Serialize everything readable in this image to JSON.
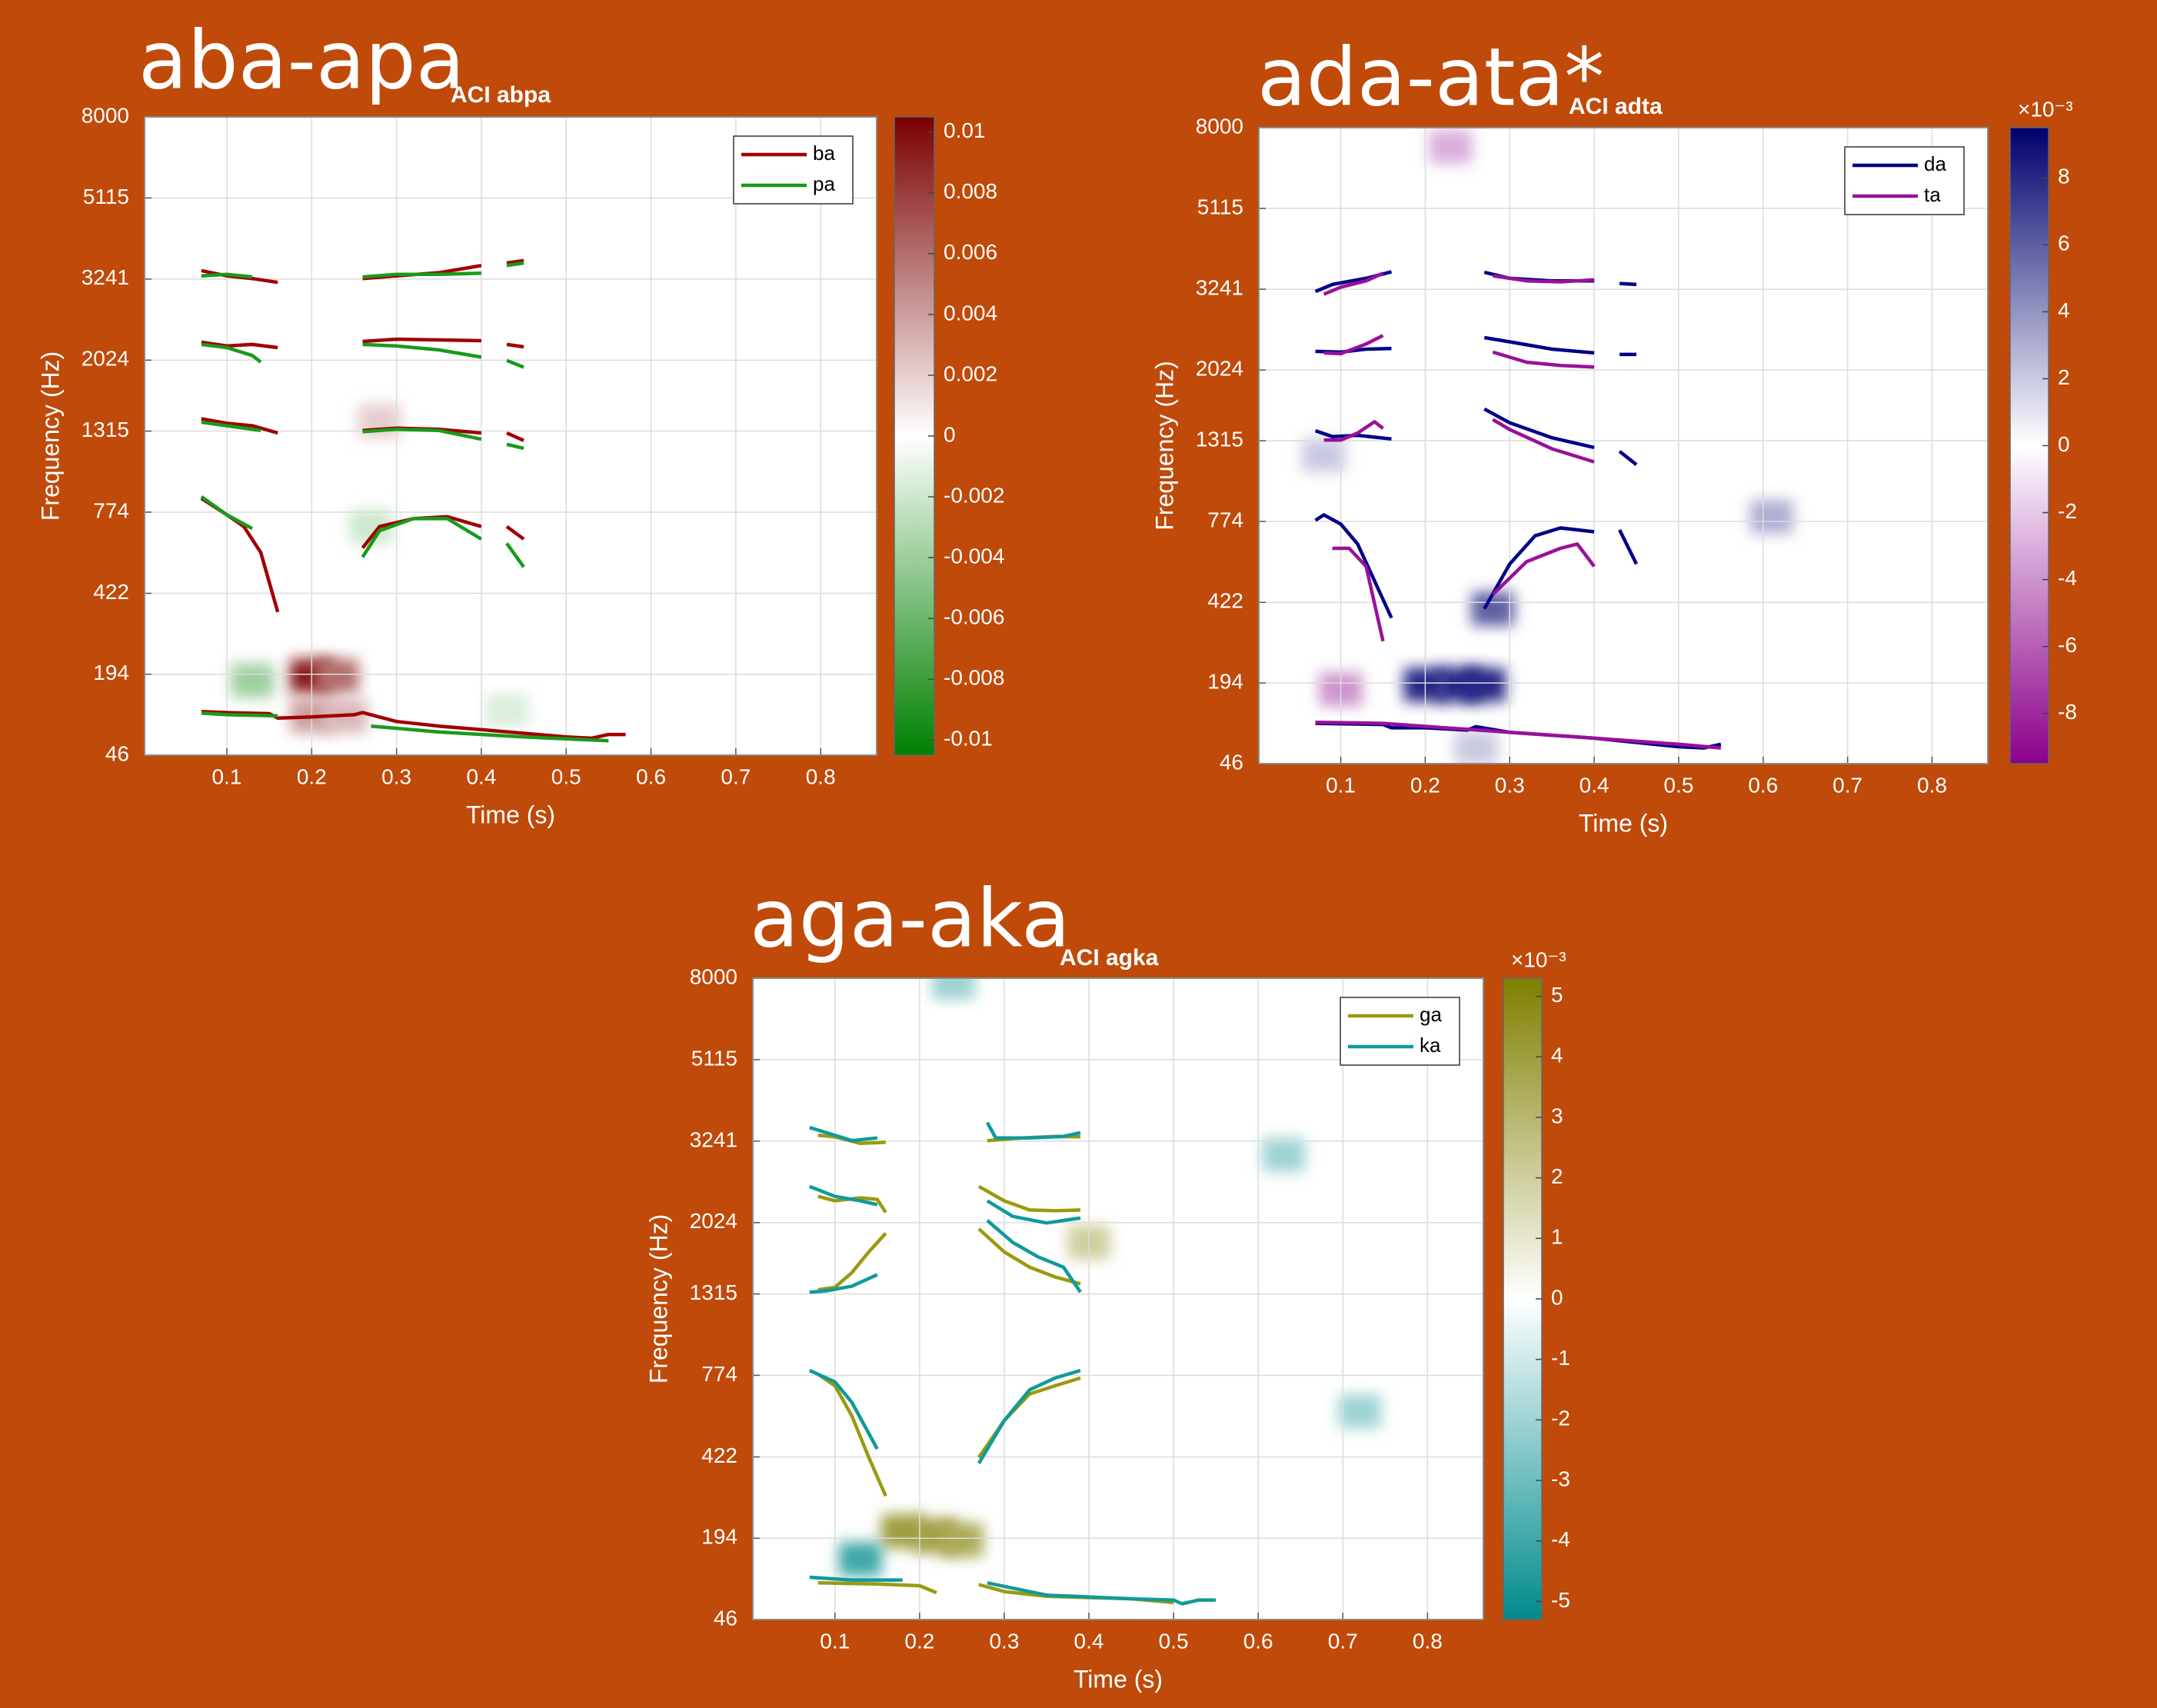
{
  "chart_data": [
    {
      "type": "heatmap",
      "title": "aba-apa",
      "subtitle": "ACI abpa",
      "xlabel": "Time (s)",
      "ylabel": "Frequency (Hz)",
      "yscale": "erb",
      "grid": true,
      "legend": "upper right",
      "xlim": [
        0.003,
        0.866
      ],
      "xticks": [
        0.1,
        0.2,
        0.3,
        0.4,
        0.5,
        0.6,
        0.7,
        0.8
      ],
      "ylim": [
        46,
        8000
      ],
      "yticks": [
        46,
        194,
        422,
        774,
        1315,
        2024,
        3241,
        5115,
        8000
      ],
      "colorbar": {
        "lim": [
          -0.0105,
          0.0105
        ],
        "ticks": [
          -0.01,
          -0.008,
          -0.006,
          -0.004,
          -0.002,
          0,
          0.002,
          0.004,
          0.006,
          0.008,
          0.01
        ],
        "colors": [
          "#008000",
          "#ffffff",
          "#7a0000"
        ]
      },
      "cells": {
        "x": [
          0.2,
          0.23,
          0.2,
          0.24,
          0.13,
          0.28,
          0.27,
          0.43
        ],
        "y": [
          190,
          190,
          110,
          110,
          180,
          1400,
          700,
          120
        ],
        "values": [
          0.0095,
          0.006,
          0.004,
          0.003,
          -0.004,
          0.002,
          -0.002,
          -0.0015
        ]
      },
      "series": [
        {
          "name": "ba",
          "color": "#a00000",
          "x": [
            0.07,
            0.1,
            0.15,
            0.16,
            0.2,
            0.25,
            0.26,
            0.3,
            0.35,
            0.4,
            0.45,
            0.5,
            0.53,
            0.55,
            0.57,
            null,
            0.07,
            0.1,
            0.12,
            0.14,
            0.16,
            null,
            0.26,
            0.28,
            0.32,
            0.36,
            0.4,
            null,
            0.43,
            0.45,
            null,
            0.07,
            0.1,
            0.13,
            0.16,
            null,
            0.26,
            0.3,
            0.35,
            0.4,
            null,
            0.43,
            0.45,
            null,
            0.07,
            0.1,
            0.13,
            0.16,
            null,
            0.26,
            0.3,
            0.35,
            0.4,
            null,
            0.43,
            0.45,
            null,
            0.07,
            0.1,
            0.13,
            0.16,
            null,
            0.26,
            0.3,
            0.35,
            0.4,
            null,
            0.43,
            0.45
          ],
          "values": [
            118,
            116,
            114,
            106,
            108,
            112,
            116,
            100,
            92,
            86,
            80,
            74,
            72,
            78,
            78,
            null,
            850,
            760,
            700,
            580,
            360,
            null,
            600,
            700,
            740,
            750,
            700,
            null,
            700,
            640,
            null,
            1420,
            1380,
            1360,
            1300,
            null,
            1320,
            1340,
            1330,
            1300,
            null,
            1300,
            1240,
            null,
            2250,
            2200,
            2220,
            2180,
            null,
            2260,
            2290,
            2280,
            2270,
            null,
            2220,
            2190,
            null,
            3400,
            3300,
            3250,
            3180,
            null,
            3250,
            3300,
            3360,
            3500,
            null,
            3550,
            3600
          ]
        },
        {
          "name": "pa",
          "color": "#1a9a1a",
          "x": [
            0.07,
            0.1,
            0.16,
            null,
            0.27,
            0.35,
            0.45,
            0.55,
            null,
            0.07,
            0.1,
            0.13,
            null,
            0.26,
            0.28,
            0.32,
            0.36,
            0.4,
            null,
            0.43,
            0.45,
            null,
            0.07,
            0.1,
            0.14,
            null,
            0.26,
            0.3,
            0.35,
            0.4,
            null,
            0.43,
            0.45,
            null,
            0.07,
            0.1,
            0.13,
            0.14,
            null,
            0.26,
            0.3,
            0.35,
            0.4,
            null,
            0.43,
            0.45,
            null,
            0.07,
            0.1,
            0.13,
            null,
            0.26,
            0.3,
            0.35,
            0.4,
            null,
            0.43,
            0.45
          ],
          "values": [
            115,
            112,
            110,
            null,
            92,
            82,
            74,
            68,
            null,
            860,
            760,
            690,
            null,
            560,
            680,
            740,
            740,
            640,
            null,
            620,
            520,
            null,
            1390,
            1360,
            1320,
            null,
            1310,
            1330,
            1320,
            1250,
            null,
            1210,
            1180,
            null,
            2220,
            2180,
            2080,
            2000,
            null,
            2220,
            2200,
            2150,
            2060,
            null,
            2020,
            1940,
            null,
            3300,
            3330,
            3280,
            null,
            3280,
            3330,
            3330,
            3350,
            null,
            3500,
            3550
          ]
        }
      ]
    },
    {
      "type": "heatmap",
      "title": "ada-ata*",
      "subtitle": "ACI adta",
      "xlabel": "Time (s)",
      "ylabel": "Frequency (Hz)",
      "yscale": "erb",
      "grid": true,
      "legend": "upper right",
      "xlim": [
        0.003,
        0.866
      ],
      "xticks": [
        0.1,
        0.2,
        0.3,
        0.4,
        0.5,
        0.6,
        0.7,
        0.8
      ],
      "ylim": [
        46,
        8000
      ],
      "yticks": [
        46,
        194,
        422,
        774,
        1315,
        2024,
        3241,
        5115,
        8000
      ],
      "colorbar": {
        "lim": [
          -9.5,
          9.5
        ],
        "ticks": [
          -8,
          -6,
          -4,
          -2,
          0,
          2,
          4,
          6,
          8
        ],
        "exponent": "×10⁻³",
        "colors": [
          "#8b008b",
          "#ffffff",
          "#00006e"
        ]
      },
      "cells": {
        "x": [
          0.2,
          0.24,
          0.27,
          0.28,
          0.1,
          0.23,
          0.61,
          0.26,
          0.08
        ],
        "y": [
          190,
          190,
          190,
          400,
          180,
          7200,
          800,
          70,
          1200
        ],
        "values": [
          8,
          8,
          8,
          6,
          -4,
          -3,
          3,
          2,
          2
        ]
      },
      "series": [
        {
          "name": "da",
          "color": "#000088",
          "x": [
            0.07,
            0.15,
            0.16,
            0.2,
            0.25,
            0.26,
            0.3,
            0.4,
            0.5,
            0.53,
            0.55,
            null,
            0.07,
            0.08,
            0.1,
            0.12,
            0.16,
            null,
            0.27,
            0.3,
            0.33,
            0.36,
            0.4,
            null,
            0.43,
            0.45,
            null,
            0.07,
            0.09,
            0.12,
            0.16,
            null,
            0.27,
            0.3,
            0.35,
            0.4,
            null,
            0.43,
            0.45,
            null,
            0.07,
            0.1,
            0.13,
            0.16,
            null,
            0.27,
            0.3,
            0.35,
            0.4,
            null,
            0.43,
            0.45,
            null,
            0.07,
            0.09,
            0.13,
            0.16,
            null,
            0.27,
            0.3,
            0.35,
            0.4,
            null,
            0.43,
            0.45
          ],
          "values": [
            112,
            110,
            104,
            104,
            100,
            106,
            96,
            86,
            72,
            70,
            76,
            null,
            780,
            810,
            760,
            660,
            370,
            null,
            400,
            570,
            700,
            740,
            720,
            null,
            730,
            570,
            null,
            1400,
            1350,
            1360,
            1330,
            null,
            1600,
            1470,
            1340,
            1260,
            null,
            1230,
            1130,
            null,
            2260,
            2250,
            2290,
            2300,
            null,
            2450,
            2390,
            2290,
            2240,
            null,
            2220,
            2220,
            null,
            3200,
            3330,
            3450,
            3580,
            null,
            3570,
            3450,
            3400,
            3400,
            null,
            3350,
            3330
          ]
        },
        {
          "name": "ta",
          "color": "#9a109a",
          "x": [
            0.07,
            0.15,
            0.3,
            0.4,
            0.5,
            0.55,
            null,
            0.09,
            0.11,
            0.13,
            0.15,
            null,
            0.28,
            0.32,
            0.36,
            0.38,
            0.4,
            null,
            0.08,
            0.1,
            0.12,
            0.14,
            0.15,
            null,
            0.28,
            0.3,
            0.35,
            0.4,
            null,
            0.08,
            0.1,
            0.13,
            0.15,
            null,
            0.28,
            0.32,
            0.36,
            0.4,
            null,
            0.08,
            0.1,
            0.13,
            0.15,
            null,
            0.28,
            0.32,
            0.36,
            0.4
          ],
          "values": [
            114,
            112,
            96,
            86,
            76,
            70,
            null,
            640,
            640,
            560,
            300,
            null,
            450,
            580,
            640,
            660,
            560,
            null,
            1320,
            1320,
            1380,
            1480,
            1420,
            null,
            1500,
            1410,
            1250,
            1150,
            null,
            2240,
            2230,
            2360,
            2480,
            null,
            2250,
            2120,
            2080,
            2060,
            null,
            3150,
            3280,
            3400,
            3550,
            null,
            3500,
            3400,
            3380,
            3420
          ]
        }
      ]
    },
    {
      "type": "heatmap",
      "title": "aga-aka",
      "subtitle": "ACI agka",
      "xlabel": "Time (s)",
      "ylabel": "Frequency (Hz)",
      "yscale": "erb",
      "grid": true,
      "legend": "upper right",
      "xlim": [
        0.003,
        0.866
      ],
      "xticks": [
        0.1,
        0.2,
        0.3,
        0.4,
        0.5,
        0.6,
        0.7,
        0.8
      ],
      "ylim": [
        46,
        8000
      ],
      "yticks": [
        46,
        194,
        422,
        774,
        1315,
        2024,
        3241,
        5115,
        8000
      ],
      "colorbar": {
        "lim": [
          -5.3,
          5.3
        ],
        "ticks": [
          -5,
          -4,
          -3,
          -2,
          -1,
          0,
          1,
          2,
          3,
          4,
          5
        ],
        "exponent": "×10⁻³",
        "colors": [
          "#008b8b",
          "#ffffff",
          "#7f7f00"
        ]
      },
      "cells": {
        "x": [
          0.18,
          0.22,
          0.25,
          0.13,
          0.24,
          0.72,
          0.4,
          0.63
        ],
        "y": [
          210,
          200,
          190,
          150,
          7800,
          600,
          1800,
          3000
        ],
        "values": [
          4,
          4,
          3.5,
          -4,
          -2,
          -2,
          2,
          -2
        ]
      },
      "series": [
        {
          "name": "ga",
          "color": "#9a9a10",
          "x": [
            0.08,
            0.15,
            0.2,
            0.22,
            null,
            0.27,
            0.3,
            0.35,
            0.45,
            0.5,
            null,
            0.08,
            0.1,
            0.12,
            0.14,
            0.16,
            null,
            0.27,
            0.3,
            0.33,
            0.36,
            0.39,
            null,
            0.08,
            0.1,
            0.12,
            0.14,
            0.16,
            null,
            0.27,
            0.3,
            0.33,
            0.36,
            0.39,
            null,
            0.08,
            0.1,
            0.13,
            0.15,
            0.16,
            null,
            0.27,
            0.3,
            0.33,
            0.36,
            0.39,
            null,
            0.08,
            0.1,
            0.13,
            0.16,
            null,
            0.28,
            0.32,
            0.36,
            0.39
          ],
          "values": [
            105,
            103,
            100,
            88,
            null,
            102,
            90,
            82,
            78,
            72,
            null,
            780,
            720,
            580,
            420,
            300,
            null,
            420,
            560,
            680,
            720,
            760,
            null,
            1350,
            1370,
            1500,
            1700,
            1900,
            null,
            1950,
            1700,
            1550,
            1460,
            1400,
            null,
            2360,
            2300,
            2340,
            2320,
            2150,
            null,
            2500,
            2300,
            2180,
            2170,
            2180,
            null,
            3350,
            3320,
            3200,
            3220,
            null,
            3250,
            3300,
            3330,
            3320
          ]
        },
        {
          "name": "ka",
          "color": "#109a9a",
          "x": [
            0.07,
            0.12,
            0.18,
            null,
            0.28,
            0.35,
            0.45,
            0.5,
            0.51,
            0.53,
            0.55,
            null,
            0.07,
            0.1,
            0.12,
            0.15,
            null,
            0.27,
            0.3,
            0.33,
            0.36,
            0.39,
            null,
            0.07,
            0.09,
            0.12,
            0.15,
            null,
            0.28,
            0.31,
            0.34,
            0.37,
            0.39,
            null,
            0.07,
            0.1,
            0.13,
            0.15,
            null,
            0.28,
            0.31,
            0.35,
            0.39,
            null,
            0.07,
            0.09,
            0.12,
            0.15,
            null,
            0.28,
            0.29,
            0.33,
            0.37,
            0.39
          ],
          "values": [
            115,
            110,
            110,
            null,
            105,
            84,
            78,
            76,
            70,
            76,
            76,
            null,
            800,
            740,
            640,
            450,
            null,
            400,
            560,
            700,
            760,
            800,
            null,
            1330,
            1340,
            1380,
            1480,
            null,
            2050,
            1800,
            1650,
            1550,
            1330,
            null,
            2500,
            2360,
            2300,
            2250,
            null,
            2300,
            2100,
            2020,
            2080,
            null,
            3500,
            3400,
            3250,
            3300,
            null,
            3600,
            3300,
            3300,
            3330,
            3400
          ]
        }
      ]
    }
  ]
}
